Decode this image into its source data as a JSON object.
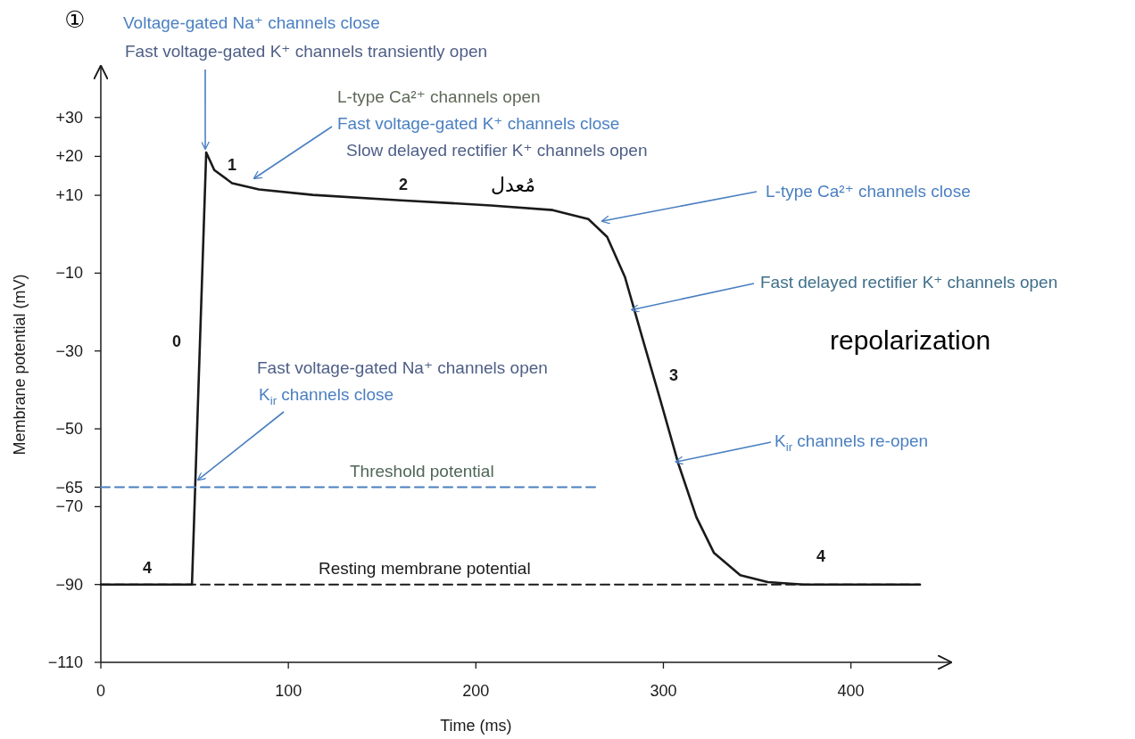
{
  "chart_data": {
    "type": "line",
    "xlabel": "Time (ms)",
    "ylabel": "Membrane potential (mV)",
    "xlim": [
      0,
      453
    ],
    "ylim": [
      -110,
      43
    ],
    "xticks": [
      0,
      100,
      200,
      300,
      400
    ],
    "yticks": [
      {
        "value": 30,
        "label": "+30"
      },
      {
        "value": 20,
        "label": "+20"
      },
      {
        "value": 10,
        "label": "+10"
      },
      {
        "value": -10,
        "label": "−10"
      },
      {
        "value": -30,
        "label": "−30"
      },
      {
        "value": -50,
        "label": "−50"
      },
      {
        "value": -65,
        "label": "−65"
      },
      {
        "value": -70,
        "label": "−70"
      },
      {
        "value": -90,
        "label": "−90"
      },
      {
        "value": -110,
        "label": "−110"
      }
    ],
    "grid": false,
    "marker": "none",
    "series": [
      {
        "color": "#1a1a1a",
        "line_style": "solid",
        "x": [
          0,
          48.6,
          56.2,
          60.5,
          70,
          84.3,
          113,
          160,
          208,
          241,
          260,
          270,
          279.5,
          289,
          298.6,
          308,
          317.6,
          327,
          341,
          355.7,
          374.8,
          436.7
        ],
        "values": [
          -90,
          -90,
          21,
          16.5,
          13.1,
          11.5,
          10.1,
          8.7,
          7.4,
          6.2,
          3.9,
          -0.7,
          -11,
          -27,
          -43,
          -59,
          -72.7,
          -81.9,
          -87.6,
          -89.4,
          -90,
          -90
        ]
      },
      {
        "color": "#4a7fc1",
        "line_style": "dashed",
        "x": [
          0,
          264
        ],
        "values": [
          -65,
          -65
        ]
      },
      {
        "color": "#1a1a1a",
        "line_style": "dashed",
        "x": [
          0,
          437
        ],
        "values": [
          -90,
          -90
        ]
      }
    ],
    "annotations": [
      "Voltage-gated Na⁺ channels close",
      {
        "text": "Fast voltage-gated K⁺ channels transiently open",
        "x": 55.7,
        "y": 22
      },
      "L-type Ca²⁺ channels open",
      "Fast voltage-gated K⁺ channels close",
      "Slow delayed rectifier K⁺ channels open",
      "L-type Ca²⁺ channels close",
      {
        "text": "Fast delayed rectifier K⁺ channels open",
        "x": 283.3,
        "y": -19.4
      },
      "Fast voltage-gated Na⁺ channels open",
      {
        "text": "K$_{ir}$ channels close",
        "x": 51.9,
        "y": -63.1
      },
      {
        "text": "K$_{ir}$ channels re-open",
        "x": 306.7,
        "y": -58.5
      },
      "Threshold potential",
      "Resting membrane potential",
      "0",
      "1",
      "2",
      "3",
      "4",
      "4",
      "①",
      "repolarization",
      "مُعدل"
    ]
  }
}
